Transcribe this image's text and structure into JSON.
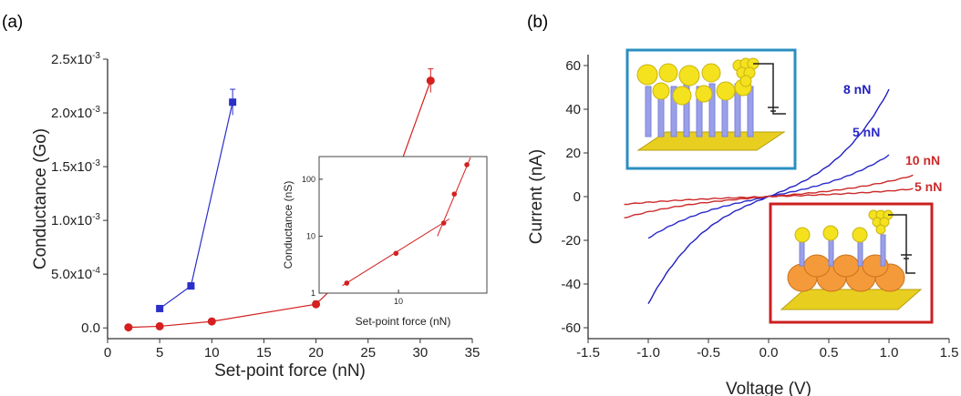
{
  "panel_a_label": "(a)",
  "panel_b_label": "(b)",
  "chart_data": [
    {
      "id": "a-main",
      "type": "line",
      "xlabel": "Set-point force (nN)",
      "ylabel": "Conductance (Go)",
      "xlim": [
        0,
        35
      ],
      "ylim": [
        -0.0001,
        0.0025
      ],
      "xticks": [
        0,
        5,
        10,
        15,
        20,
        25,
        30,
        35
      ],
      "yticks": [
        0,
        0.0005,
        0.001,
        0.0015,
        0.002,
        0.0025
      ],
      "yticklabels": [
        "0.0",
        "5.0x10-4",
        "1.0x10-3",
        "1.5x10-3",
        "2.0x10-3",
        "2.5x10-3"
      ],
      "series": [
        {
          "color": "#2a2fc9",
          "marker": "square",
          "x": [
            5,
            8,
            12
          ],
          "y": [
            0.00018,
            0.00039,
            0.0021
          ],
          "err": [
            2e-05,
            3e-05,
            0.00012
          ]
        },
        {
          "color": "#d42020",
          "marker": "circle",
          "x": [
            2,
            5,
            10,
            20,
            25,
            31
          ],
          "y": [
            5e-06,
            1.5e-05,
            6e-05,
            0.00022,
            0.00069,
            0.0023
          ],
          "err": [
            1e-05,
            1e-05,
            1e-05,
            3e-05,
            5e-05,
            0.00011
          ]
        }
      ]
    },
    {
      "id": "a-inset",
      "type": "scatter",
      "xlabel": "Set-point force (nN)",
      "ylabel": "Conductance (nS)",
      "xscale": "log",
      "yscale": "log",
      "xlim": [
        2,
        60
      ],
      "ylim": [
        1,
        250
      ],
      "xticks": [
        10
      ],
      "yticks": [
        1,
        10,
        100
      ],
      "series": [
        {
          "color": "#d42020",
          "marker": "circle",
          "x": [
            3.5,
            9.5,
            25,
            31,
            40
          ],
          "y": [
            1.5,
            5,
            17,
            55,
            180
          ]
        }
      ],
      "fit_lines": [
        {
          "x": [
            3.2,
            28
          ],
          "y": [
            1.35,
            20
          ]
        },
        {
          "x": [
            22,
            43
          ],
          "y": [
            10,
            240
          ]
        }
      ]
    },
    {
      "id": "b",
      "type": "line",
      "xlabel": "Voltage (V)",
      "ylabel": "Current (nA)",
      "xlim": [
        -1.5,
        1.5
      ],
      "ylim": [
        -65,
        65
      ],
      "xticks": [
        -1.5,
        -1.0,
        -0.5,
        0.0,
        0.5,
        1.0,
        1.5
      ],
      "xticklabels": [
        "-1.5",
        "-1.0",
        "-0.5",
        "0.0",
        "0.5",
        "1.0",
        "1.5"
      ],
      "yticks": [
        -60,
        -40,
        -20,
        0,
        20,
        40,
        60
      ],
      "series": [
        {
          "name": "8 nN",
          "color": "#2020c0",
          "x0": -1.0,
          "x1": 1.0,
          "a": 22,
          "b": 27
        },
        {
          "name": "5 nN",
          "color": "#2a2acc",
          "x0": -1.0,
          "x1": 1.0,
          "a": 11,
          "b": 8
        },
        {
          "name": "10 nN",
          "color": "#cc2a2a",
          "x0": -1.2,
          "x1": 1.2,
          "a": 4.5,
          "b": 2.5
        },
        {
          "name": "5 nN",
          "color": "#cc2a2a",
          "x0": -1.2,
          "x1": 1.2,
          "a": 1.8,
          "b": 0.8
        }
      ]
    }
  ]
}
